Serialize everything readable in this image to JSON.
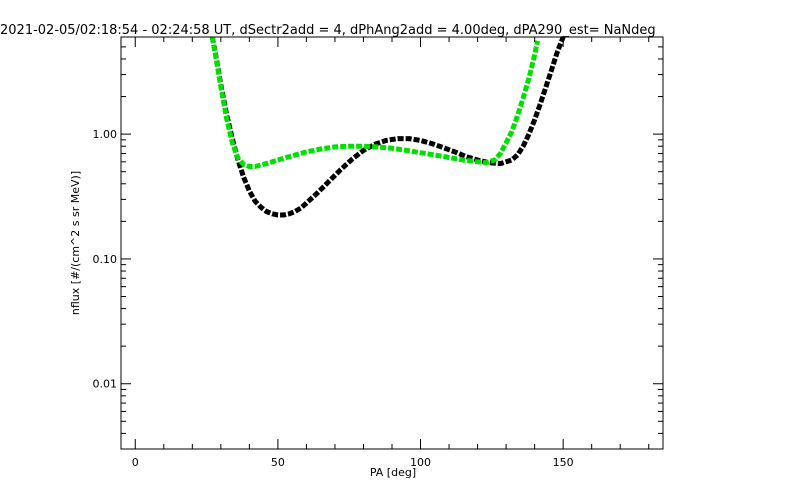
{
  "chart_data": {
    "type": "line",
    "title": "2021-02-05/02:18:54 - 02:24:58 UT, dSectr2add = 4, dPhAng2add = 4.00deg, dPA290_est=    NaNdeg",
    "xlabel": "PA [deg]",
    "ylabel": "nflux [#/(cm^2 s sr MeV)]",
    "xlim": [
      -5,
      185
    ],
    "ylim": [
      0.003,
      6
    ],
    "y_scale": "log",
    "grid": false,
    "legend": "none",
    "x_ticks": [
      {
        "value": 0,
        "label": "0"
      },
      {
        "value": 50,
        "label": "50"
      },
      {
        "value": 100,
        "label": "100"
      },
      {
        "value": 150,
        "label": "150"
      }
    ],
    "y_ticks": [
      {
        "value": 0.01,
        "label": "0.01"
      },
      {
        "value": 0.1,
        "label": "0.10"
      },
      {
        "value": 1.0,
        "label": "1.00"
      }
    ],
    "series": [
      {
        "color": "#000000",
        "x": [
          27,
          28,
          30,
          32,
          34,
          36,
          38,
          40,
          42,
          44,
          46,
          48,
          50,
          52,
          54,
          56,
          58,
          60,
          64,
          68,
          72,
          76,
          80,
          84,
          88,
          92,
          96,
          100,
          104,
          108,
          112,
          116,
          120,
          124,
          128,
          132,
          134,
          136,
          138,
          140,
          142,
          144,
          146,
          148,
          150
        ],
        "y": [
          6.0,
          4.6,
          2.5,
          1.45,
          0.92,
          0.62,
          0.45,
          0.35,
          0.29,
          0.26,
          0.24,
          0.23,
          0.225,
          0.225,
          0.23,
          0.24,
          0.255,
          0.28,
          0.34,
          0.42,
          0.52,
          0.63,
          0.74,
          0.83,
          0.89,
          0.92,
          0.92,
          0.89,
          0.84,
          0.78,
          0.72,
          0.66,
          0.62,
          0.59,
          0.58,
          0.62,
          0.68,
          0.8,
          1.0,
          1.3,
          1.75,
          2.4,
          3.3,
          4.6,
          6.0
        ]
      },
      {
        "color": "#00e000",
        "x": [
          27,
          28,
          30,
          32,
          34,
          36,
          38,
          40,
          42,
          46,
          50,
          55,
          60,
          65,
          70,
          75,
          80,
          85,
          90,
          95,
          100,
          105,
          110,
          115,
          120,
          123,
          126,
          128,
          130,
          132,
          134,
          136,
          138,
          140,
          141
        ],
        "y": [
          6.0,
          4.5,
          2.4,
          1.35,
          0.85,
          0.64,
          0.57,
          0.55,
          0.55,
          0.58,
          0.62,
          0.67,
          0.72,
          0.76,
          0.79,
          0.8,
          0.8,
          0.79,
          0.77,
          0.74,
          0.71,
          0.68,
          0.65,
          0.62,
          0.6,
          0.59,
          0.62,
          0.7,
          0.85,
          1.05,
          1.4,
          1.95,
          2.8,
          4.3,
          5.6
        ]
      }
    ]
  }
}
